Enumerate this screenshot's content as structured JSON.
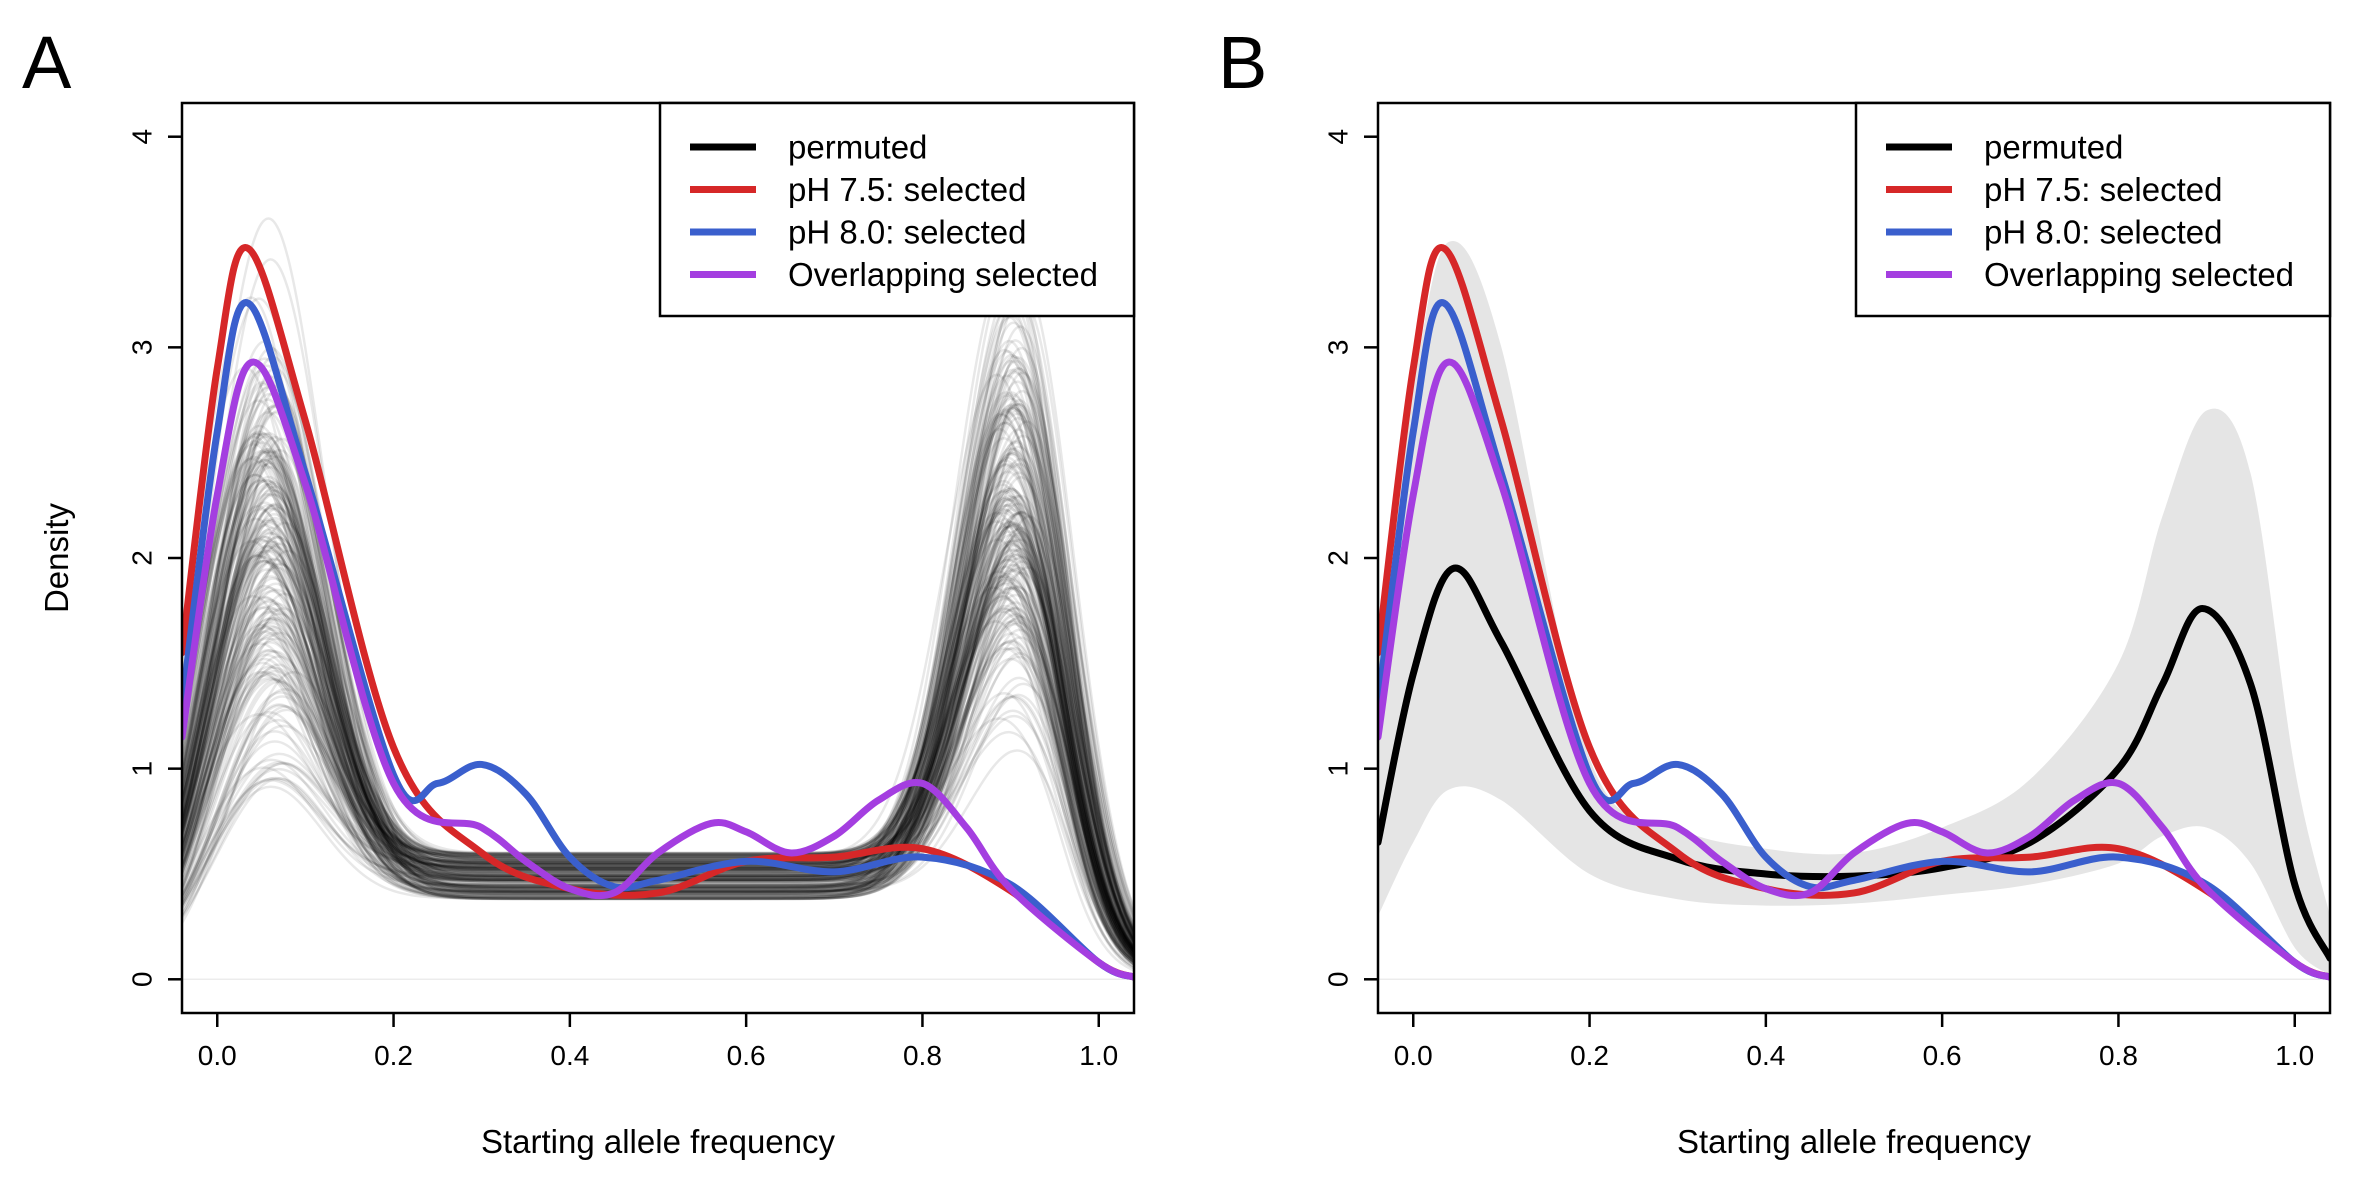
{
  "colors": {
    "permuted": "#000000",
    "ph75": "#d62728",
    "ph80": "#3a5fcd",
    "overlap": "#a43ee0",
    "band": "#e5e5e5"
  },
  "chart_data": [
    {
      "panel": "A",
      "type": "line",
      "xlabel": "Starting allele frequency",
      "ylabel": "Density",
      "xlim": [
        -0.04,
        1.04
      ],
      "ylim": [
        -0.16,
        4.16
      ],
      "x_ticks": [
        "0.0",
        "0.2",
        "0.4",
        "0.6",
        "0.8",
        "1.0"
      ],
      "y_ticks": [
        "0",
        "1",
        "2",
        "3",
        "4"
      ],
      "legend_position": "top-right",
      "legend": [
        "permuted",
        "pH 7.5: selected",
        "pH 8.0: selected",
        "Overlapping selected"
      ],
      "permuted_draws": "many semi-transparent black density curves (approx. 500 permutations)",
      "series": [
        {
          "name": "pH 7.5: selected",
          "x": [
            -0.04,
            0.0,
            0.035,
            0.1,
            0.2,
            0.3,
            0.4,
            0.5,
            0.6,
            0.7,
            0.8,
            0.9,
            1.0,
            1.04
          ],
          "y": [
            1.55,
            2.9,
            3.47,
            2.65,
            1.1,
            0.6,
            0.43,
            0.41,
            0.56,
            0.58,
            0.62,
            0.42,
            0.08,
            0.01
          ]
        },
        {
          "name": "pH 8.0: selected",
          "x": [
            -0.04,
            0.0,
            0.035,
            0.1,
            0.2,
            0.25,
            0.3,
            0.35,
            0.4,
            0.45,
            0.5,
            0.6,
            0.7,
            0.8,
            0.9,
            1.0,
            1.04
          ],
          "y": [
            1.3,
            2.6,
            3.21,
            2.4,
            0.97,
            0.93,
            1.02,
            0.88,
            0.58,
            0.44,
            0.47,
            0.56,
            0.51,
            0.58,
            0.45,
            0.08,
            0.01
          ]
        },
        {
          "name": "Overlapping selected",
          "x": [
            -0.04,
            0.0,
            0.04,
            0.1,
            0.2,
            0.3,
            0.35,
            0.4,
            0.45,
            0.5,
            0.56,
            0.6,
            0.65,
            0.7,
            0.75,
            0.8,
            0.85,
            0.9,
            1.0,
            1.04
          ],
          "y": [
            1.15,
            2.3,
            2.93,
            2.35,
            0.93,
            0.72,
            0.56,
            0.43,
            0.41,
            0.6,
            0.74,
            0.7,
            0.6,
            0.68,
            0.85,
            0.93,
            0.72,
            0.43,
            0.08,
            0.01
          ]
        }
      ]
    },
    {
      "panel": "B",
      "type": "line",
      "xlabel": "Starting allele frequency",
      "ylabel": "",
      "xlim": [
        -0.04,
        1.04
      ],
      "ylim": [
        -0.16,
        4.16
      ],
      "x_ticks": [
        "0.0",
        "0.2",
        "0.4",
        "0.6",
        "0.8",
        "1.0"
      ],
      "y_ticks": [
        "0",
        "1",
        "2",
        "3",
        "4"
      ],
      "legend_position": "top-right",
      "legend": [
        "permuted",
        "pH 7.5: selected",
        "pH 8.0: selected",
        "Overlapping selected"
      ],
      "band": {
        "x": [
          -0.04,
          0.0,
          0.04,
          0.1,
          0.2,
          0.3,
          0.4,
          0.5,
          0.6,
          0.7,
          0.8,
          0.85,
          0.9,
          0.95,
          1.0,
          1.04
        ],
        "upper": [
          1.6,
          2.8,
          3.5,
          3.0,
          1.05,
          0.72,
          0.62,
          0.6,
          0.72,
          0.95,
          1.5,
          2.2,
          2.7,
          2.4,
          1.0,
          0.3
        ],
        "lower": [
          0.3,
          0.65,
          0.9,
          0.85,
          0.5,
          0.38,
          0.35,
          0.36,
          0.4,
          0.45,
          0.55,
          0.68,
          0.72,
          0.55,
          0.15,
          0.02
        ]
      },
      "series": [
        {
          "name": "permuted",
          "x": [
            -0.04,
            0.0,
            0.045,
            0.1,
            0.2,
            0.3,
            0.4,
            0.5,
            0.6,
            0.7,
            0.8,
            0.85,
            0.895,
            0.95,
            1.0,
            1.04
          ],
          "y": [
            0.65,
            1.45,
            1.95,
            1.6,
            0.8,
            0.57,
            0.5,
            0.49,
            0.53,
            0.65,
            1.0,
            1.4,
            1.76,
            1.4,
            0.45,
            0.1
          ]
        },
        {
          "name": "pH 7.5: selected",
          "x": [
            -0.04,
            0.0,
            0.035,
            0.1,
            0.2,
            0.3,
            0.4,
            0.5,
            0.6,
            0.7,
            0.8,
            0.9,
            1.0,
            1.04
          ],
          "y": [
            1.55,
            2.9,
            3.47,
            2.65,
            1.1,
            0.6,
            0.43,
            0.41,
            0.56,
            0.58,
            0.62,
            0.42,
            0.08,
            0.01
          ]
        },
        {
          "name": "pH 8.0: selected",
          "x": [
            -0.04,
            0.0,
            0.035,
            0.1,
            0.2,
            0.25,
            0.3,
            0.35,
            0.4,
            0.45,
            0.5,
            0.6,
            0.7,
            0.8,
            0.9,
            1.0,
            1.04
          ],
          "y": [
            1.3,
            2.6,
            3.21,
            2.4,
            0.97,
            0.93,
            1.02,
            0.88,
            0.58,
            0.44,
            0.47,
            0.56,
            0.51,
            0.58,
            0.45,
            0.08,
            0.01
          ]
        },
        {
          "name": "Overlapping selected",
          "x": [
            -0.04,
            0.0,
            0.04,
            0.1,
            0.2,
            0.3,
            0.35,
            0.4,
            0.45,
            0.5,
            0.56,
            0.6,
            0.65,
            0.7,
            0.75,
            0.8,
            0.85,
            0.9,
            1.0,
            1.04
          ],
          "y": [
            1.15,
            2.3,
            2.93,
            2.35,
            0.93,
            0.72,
            0.56,
            0.43,
            0.41,
            0.6,
            0.74,
            0.7,
            0.6,
            0.68,
            0.85,
            0.93,
            0.72,
            0.43,
            0.08,
            0.01
          ]
        }
      ]
    }
  ]
}
